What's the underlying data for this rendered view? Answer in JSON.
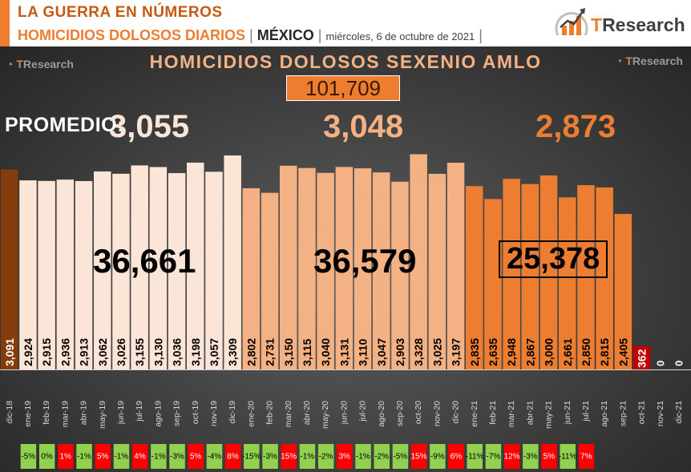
{
  "header": {
    "title": "LA GUERRA EN NÚMEROS",
    "subtitle": "HOMICIDIOS DOLOSOS DIARIOS",
    "country": "MÉXICO",
    "date": "miércoles, 6 de octubre de 2021",
    "sep1": "|",
    "sep2": "|",
    "sep3": "|",
    "brand_t": "T",
    "brand_rest": "Research"
  },
  "watermark": {
    "t": "T",
    "rest": "Research"
  },
  "main_title": "HOMICIDIOS DOLOSOS SEXENIO AMLO",
  "total": "101,709",
  "promedio_label": "PROMEDIO:",
  "averages": [
    "3,055",
    "3,048",
    "2,873"
  ],
  "period_totals": [
    "36,661",
    "36,579",
    "25,378"
  ],
  "colors": {
    "first": "#843c0c",
    "period1": "#fbe5d6",
    "period2": "#f4b183",
    "period3": "#ed7d31",
    "current": "#c00000",
    "pct_positive": "#ff0000",
    "pct_negative": "#92d050",
    "avg1": "#fbe5d6",
    "avg2": "#f4b183",
    "avg3": "#ed7d31"
  },
  "chart_data": {
    "type": "bar",
    "categories": [
      "dic-18",
      "ene-19",
      "feb-19",
      "mar-19",
      "abr-19",
      "may-19",
      "jun-19",
      "jul-19",
      "ago-19",
      "sep-19",
      "oct-19",
      "nov-19",
      "dic-19",
      "ene-20",
      "feb-20",
      "mar-20",
      "abr-20",
      "may-20",
      "jun-20",
      "jul-20",
      "ago-20",
      "sep-20",
      "oct-20",
      "nov-20",
      "dic-20",
      "ene-21",
      "feb-21",
      "mar-21",
      "abr-21",
      "may-21",
      "jun-21",
      "jul-21",
      "ago-21",
      "sep-21",
      "oct-21",
      "nov-21",
      "dic-21"
    ],
    "values": [
      3091,
      2924,
      2915,
      2936,
      2913,
      3062,
      3026,
      3155,
      3130,
      3036,
      3198,
      3057,
      3309,
      2802,
      2731,
      3150,
      3115,
      3040,
      3131,
      3110,
      3047,
      2903,
      3328,
      3025,
      3197,
      2835,
      2635,
      2948,
      2867,
      3000,
      2661,
      2850,
      2815,
      2405,
      362,
      0,
      0
    ],
    "labels": [
      "3,091",
      "2,924",
      "2,915",
      "2,936",
      "2,913",
      "3,062",
      "3,026",
      "3,155",
      "3,130",
      "3,036",
      "3,198",
      "3,057",
      "3,309",
      "2,802",
      "2,731",
      "3,150",
      "3,115",
      "3,040",
      "3,131",
      "3,110",
      "3,047",
      "2,903",
      "3,328",
      "3,025",
      "3,197",
      "2,835",
      "2,635",
      "2,948",
      "2,867",
      "3,000",
      "2,661",
      "2,850",
      "2,815",
      "2,405",
      "362",
      "0",
      "0"
    ],
    "pct_change": [
      "-5%",
      "0%",
      "1%",
      "-1%",
      "5%",
      "-1%",
      "4%",
      "-1%",
      "-3%",
      "5%",
      "-4%",
      "8%",
      "-15%",
      "-3%",
      "15%",
      "-1%",
      "-2%",
      "3%",
      "-1%",
      "-2%",
      "-5%",
      "15%",
      "-9%",
      "6%",
      "-11%",
      "-7%",
      "12%",
      "-3%",
      "5%",
      "-11%",
      "7%",
      "",
      "",
      "",
      ""
    ],
    "pct_values": [
      -5,
      0,
      1,
      -1,
      5,
      -1,
      4,
      -1,
      -3,
      5,
      -4,
      8,
      -15,
      -3,
      15,
      -1,
      -2,
      3,
      -1,
      -2,
      -5,
      15,
      -9,
      6,
      -11,
      -7,
      12,
      -3,
      5,
      -11,
      7,
      null,
      null,
      null,
      null
    ],
    "ylim": [
      0,
      3500
    ]
  }
}
